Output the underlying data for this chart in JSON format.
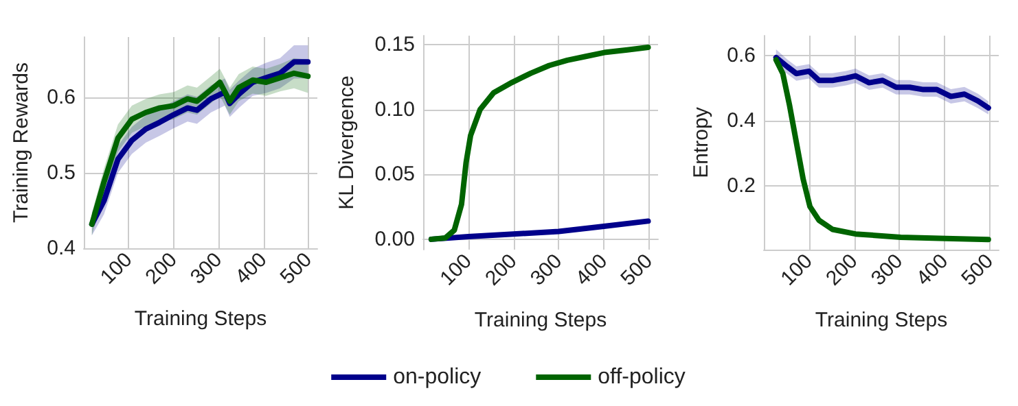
{
  "chart_data": [
    {
      "type": "line",
      "xlabel": "Training Steps",
      "ylabel": "Training Rewards",
      "xlim": [
        0,
        520
      ],
      "xticks": [
        100,
        200,
        300,
        400,
        500
      ],
      "ylim": [
        0.4,
        0.68
      ],
      "yticks": [
        0.4,
        0.5,
        0.6
      ],
      "grid": true,
      "legend": false,
      "marker": "none",
      "series": [
        {
          "color": "#00008b",
          "x": [
            18,
            45,
            76,
            107,
            138,
            169,
            200,
            231,
            252,
            283,
            314,
            325,
            345,
            376,
            406,
            437,
            468,
            499
          ],
          "values": [
            0.432,
            0.463,
            0.518,
            0.543,
            0.558,
            0.567,
            0.577,
            0.586,
            0.583,
            0.598,
            0.607,
            0.592,
            0.604,
            0.62,
            0.626,
            0.632,
            0.647,
            0.647
          ],
          "lower": [
            0.417,
            0.445,
            0.5,
            0.525,
            0.54,
            0.549,
            0.559,
            0.568,
            0.565,
            0.58,
            0.589,
            0.574,
            0.586,
            0.602,
            0.606,
            0.612,
            0.625,
            0.625
          ],
          "upper": [
            0.447,
            0.481,
            0.536,
            0.561,
            0.576,
            0.585,
            0.595,
            0.604,
            0.601,
            0.616,
            0.625,
            0.61,
            0.622,
            0.638,
            0.646,
            0.652,
            0.669,
            0.669
          ]
        },
        {
          "color": "#006400",
          "x": [
            18,
            45,
            76,
            107,
            138,
            169,
            200,
            231,
            252,
            283,
            303,
            325,
            345,
            376,
            406,
            437,
            468,
            499
          ],
          "values": [
            0.432,
            0.488,
            0.546,
            0.571,
            0.58,
            0.586,
            0.589,
            0.598,
            0.595,
            0.61,
            0.62,
            0.595,
            0.613,
            0.623,
            0.62,
            0.626,
            0.632,
            0.628
          ],
          "lower": [
            0.417,
            0.47,
            0.528,
            0.553,
            0.562,
            0.568,
            0.571,
            0.58,
            0.577,
            0.592,
            0.602,
            0.577,
            0.595,
            0.605,
            0.602,
            0.608,
            0.612,
            0.606
          ],
          "upper": [
            0.447,
            0.506,
            0.564,
            0.589,
            0.598,
            0.604,
            0.607,
            0.616,
            0.613,
            0.628,
            0.638,
            0.613,
            0.631,
            0.641,
            0.638,
            0.644,
            0.652,
            0.65
          ]
        }
      ]
    },
    {
      "type": "line",
      "xlabel": "Training Steps",
      "ylabel": "KL Divergence",
      "xlim": [
        0,
        520
      ],
      "xticks": [
        100,
        200,
        300,
        400,
        500
      ],
      "ylim": [
        -0.008,
        0.157
      ],
      "yticks": [
        {
          "value": 0,
          "label": "0.00"
        },
        {
          "value": 0.05,
          "label": "0.05"
        },
        {
          "value": 0.1,
          "label": "0.10"
        },
        {
          "value": 0.15,
          "label": "0.15"
        }
      ],
      "grid": true,
      "legend": "bottom",
      "marker": "none",
      "series": [
        {
          "name": "on-policy",
          "color": "#00008b",
          "x": [
            18,
            100,
            200,
            300,
            400,
            498
          ],
          "values": [
            0.0,
            0.002,
            0.004,
            0.006,
            0.01,
            0.014
          ]
        },
        {
          "name": "off-policy",
          "color": "#006400",
          "x": [
            18,
            49,
            69,
            85,
            95,
            105,
            126,
            156,
            197,
            238,
            279,
            319,
            360,
            401,
            452,
            498
          ],
          "values": [
            0.0,
            0.001,
            0.007,
            0.027,
            0.059,
            0.08,
            0.1,
            0.113,
            0.121,
            0.128,
            0.134,
            0.138,
            0.141,
            0.144,
            0.146,
            0.148
          ]
        }
      ]
    },
    {
      "type": "line",
      "xlabel": "Training Steps",
      "ylabel": "Entropy",
      "xlim": [
        0,
        520
      ],
      "xticks": [
        100,
        200,
        300,
        400,
        500
      ],
      "ylim": [
        0.005,
        0.66
      ],
      "yticks": [
        0.2,
        0.4,
        0.6
      ],
      "grid": true,
      "legend": false,
      "marker": "none",
      "series": [
        {
          "color": "#00008b",
          "x": [
            27,
            52,
            72,
            100,
            122,
            152,
            182,
            203,
            233,
            263,
            293,
            323,
            353,
            383,
            414,
            444,
            474,
            497
          ],
          "values": [
            0.593,
            0.565,
            0.544,
            0.551,
            0.523,
            0.523,
            0.53,
            0.537,
            0.516,
            0.523,
            0.502,
            0.502,
            0.495,
            0.495,
            0.474,
            0.481,
            0.46,
            0.439
          ],
          "lower": [
            0.568,
            0.543,
            0.522,
            0.529,
            0.501,
            0.501,
            0.508,
            0.515,
            0.494,
            0.501,
            0.48,
            0.48,
            0.473,
            0.473,
            0.452,
            0.459,
            0.438,
            0.419
          ],
          "upper": [
            0.618,
            0.587,
            0.566,
            0.573,
            0.545,
            0.545,
            0.552,
            0.559,
            0.538,
            0.545,
            0.524,
            0.524,
            0.517,
            0.517,
            0.496,
            0.503,
            0.482,
            0.459
          ]
        },
        {
          "color": "#006400",
          "x": [
            27,
            42,
            57,
            72,
            87,
            102,
            122,
            152,
            203,
            303,
            403,
            497
          ],
          "values": [
            0.586,
            0.544,
            0.446,
            0.333,
            0.221,
            0.137,
            0.095,
            0.067,
            0.053,
            0.043,
            0.039,
            0.036
          ]
        }
      ]
    }
  ]
}
